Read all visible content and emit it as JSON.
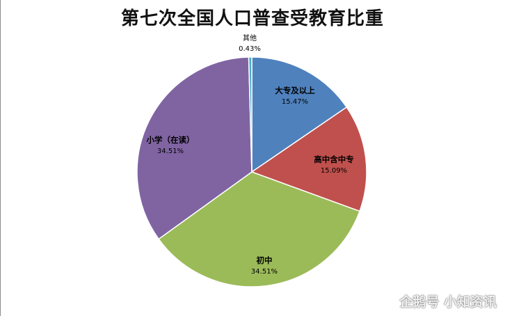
{
  "chart_data": {
    "type": "pie",
    "title": "第七次全国人口普查受教育比重",
    "slices": [
      {
        "name": "大专及以上",
        "label": "15.47%",
        "value": 15.47,
        "color": "#4f81bd"
      },
      {
        "name": "高中含中专",
        "label": "15.09%",
        "value": 15.09,
        "color": "#c0504d"
      },
      {
        "name": "初中",
        "label": "34.51%",
        "value": 34.51,
        "color": "#9bbb59"
      },
      {
        "name": "小学（在读）",
        "label": "34.51%",
        "value": 34.51,
        "color": "#8064a2"
      },
      {
        "name": "其他",
        "label": "0.43%",
        "value": 0.43,
        "color": "#4bacc6"
      }
    ]
  },
  "watermark": {
    "text": "企鹅号 小知资讯"
  }
}
